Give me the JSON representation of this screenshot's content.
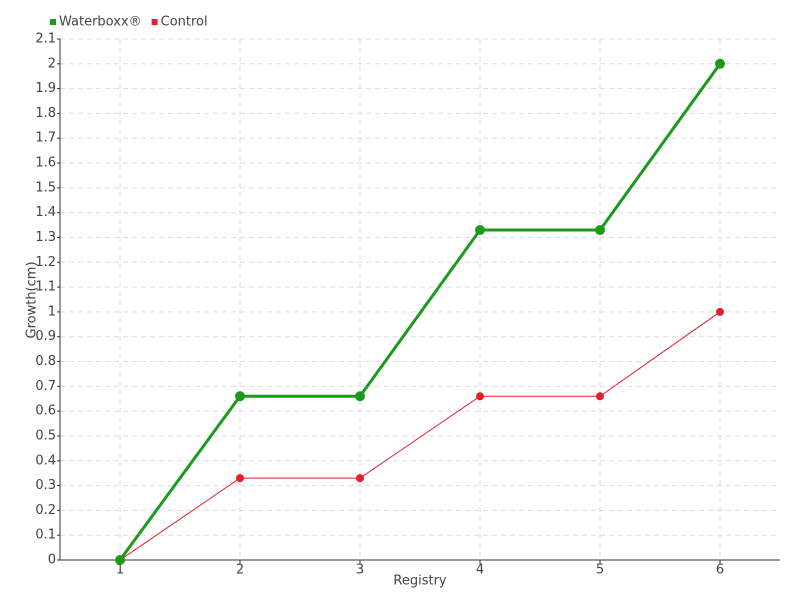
{
  "chart_data": {
    "type": "line",
    "xlabel": "Registry",
    "ylabel": "Growth(cm)",
    "categories": [
      "1",
      "2",
      "3",
      "4",
      "5",
      "6"
    ],
    "series": [
      {
        "name": "Waterboxx®",
        "color": "#1c9a1c",
        "values": [
          0,
          0.66,
          0.66,
          1.33,
          1.33,
          2.0
        ]
      },
      {
        "name": "Control",
        "color": "#e3202c",
        "values": [
          0,
          0.33,
          0.33,
          0.66,
          0.66,
          1.0
        ]
      }
    ],
    "ylim": [
      0,
      2.1
    ],
    "yticks": [
      0,
      0.1,
      0.2,
      0.3,
      0.4,
      0.5,
      0.6,
      0.7,
      0.8,
      0.9,
      1,
      1.1,
      1.2,
      1.3,
      1.4,
      1.5,
      1.6,
      1.7,
      1.8,
      1.9,
      2,
      2.1
    ],
    "grid": true,
    "legend": "top-left"
  }
}
